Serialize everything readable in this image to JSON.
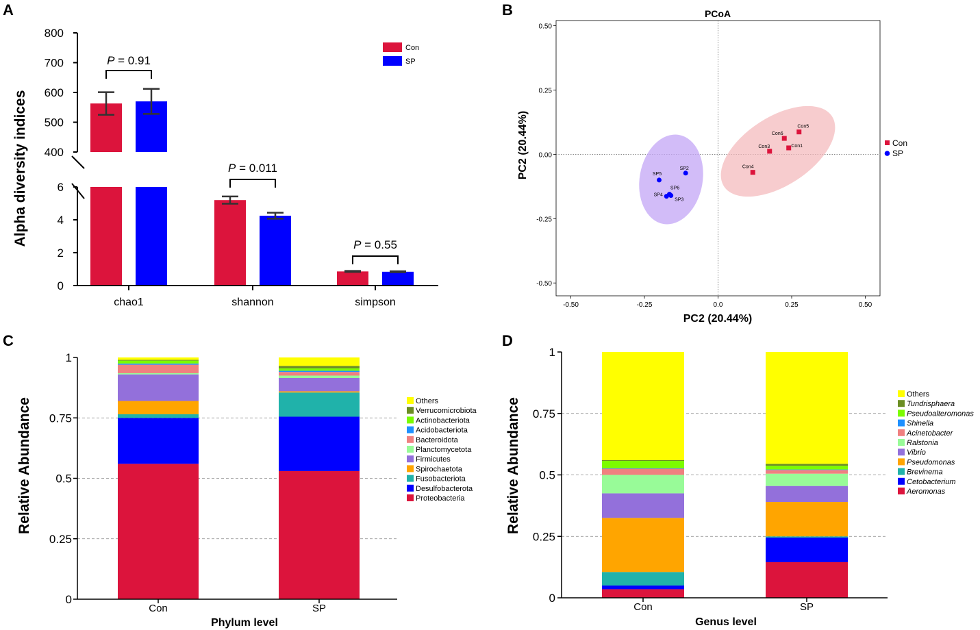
{
  "panels": {
    "A": {
      "label": "A"
    },
    "B": {
      "label": "B"
    },
    "C": {
      "label": "C"
    },
    "D": {
      "label": "D"
    }
  },
  "chart_data": [
    {
      "id": "A",
      "type": "bar",
      "title": "",
      "ylabel": "Alpha diversity indices",
      "xlabel": "",
      "categories": [
        "chao1",
        "shannon",
        "simpson"
      ],
      "series": [
        {
          "name": "Con",
          "color": "#dc143c",
          "values": [
            563,
            5.2,
            0.86
          ],
          "errors": [
            38,
            0.22,
            0.03
          ]
        },
        {
          "name": "SP",
          "color": "#0000ff",
          "values": [
            570,
            4.25,
            0.84
          ],
          "errors": [
            42,
            0.18,
            0.03
          ]
        }
      ],
      "axis_break": {
        "lower_range": [
          0,
          6
        ],
        "upper_range": [
          400,
          800
        ]
      },
      "lower_ticks": [
        "0",
        "2",
        "4",
        "6"
      ],
      "upper_ticks": [
        "400",
        "500",
        "600",
        "700",
        "800"
      ],
      "annotations": [
        "P = 0.91",
        "P = 0.011",
        "P = 0.55"
      ],
      "legend": [
        "Con",
        "SP"
      ]
    },
    {
      "id": "B",
      "type": "scatter",
      "title": "PCoA",
      "xlabel": "PC2 (20.44%)",
      "ylabel": "PC2 (20.44%)",
      "xlim": [
        -0.55,
        0.55
      ],
      "ylim": [
        -0.55,
        0.52
      ],
      "xticks": [
        "-0.50",
        "-0.25",
        "0.0",
        "0.25",
        "0.50"
      ],
      "yticks": [
        "0.50",
        "0.25",
        "0.00",
        "-0.25",
        "-0.50"
      ],
      "series": [
        {
          "name": "Con",
          "color": "#dc143c",
          "marker": "square",
          "points": [
            {
              "label": "Con1",
              "x": 0.24,
              "y": 0.025
            },
            {
              "label": "Con3",
              "x": 0.175,
              "y": 0.012
            },
            {
              "label": "Con4",
              "x": 0.118,
              "y": -0.07
            },
            {
              "label": "Con5",
              "x": 0.275,
              "y": 0.087
            },
            {
              "label": "Con6",
              "x": 0.225,
              "y": 0.062
            }
          ]
        },
        {
          "name": "SP",
          "color": "#0000ff",
          "marker": "circle",
          "points": [
            {
              "label": "SP2",
              "x": -0.11,
              "y": -0.073
            },
            {
              "label": "SP3",
              "x": -0.16,
              "y": -0.16
            },
            {
              "label": "SP4",
              "x": -0.175,
              "y": -0.163
            },
            {
              "label": "SP5",
              "x": -0.2,
              "y": -0.1
            },
            {
              "label": "SP6",
              "x": -0.165,
              "y": -0.155
            }
          ]
        }
      ],
      "legend": [
        "Con",
        "SP"
      ]
    },
    {
      "id": "C",
      "type": "bar",
      "stacked": true,
      "title": "",
      "xlabel": "Phylum level",
      "ylabel": "Relative Abundance",
      "categories": [
        "Con",
        "SP"
      ],
      "yticks": [
        "0",
        "0.25",
        "0.5",
        "0.75",
        "1"
      ],
      "ylim": [
        0,
        1
      ],
      "series": [
        {
          "name": "Proteobacteria",
          "color": "#dc143c",
          "values": [
            0.56,
            0.53
          ]
        },
        {
          "name": "Desulfobacterota",
          "color": "#0000ff",
          "values": [
            0.19,
            0.225
          ]
        },
        {
          "name": "Fusobacteriota",
          "color": "#20b2aa",
          "values": [
            0.015,
            0.1
          ]
        },
        {
          "name": "Spirochaetota",
          "color": "#ffa500",
          "values": [
            0.055,
            0.005
          ]
        },
        {
          "name": "Firmicutes",
          "color": "#9370db",
          "values": [
            0.11,
            0.055
          ]
        },
        {
          "name": "Planctomycetota",
          "color": "#98fb98",
          "values": [
            0.005,
            0.01
          ]
        },
        {
          "name": "Bacteroidota",
          "color": "#f08080",
          "values": [
            0.035,
            0.015
          ]
        },
        {
          "name": "Acidobacteriota",
          "color": "#1e90ff",
          "values": [
            0.005,
            0.005
          ]
        },
        {
          "name": "Actinobacteriota",
          "color": "#7cfc00",
          "values": [
            0.012,
            0.01
          ]
        },
        {
          "name": "Verrucomicrobiota",
          "color": "#6b8e23",
          "values": [
            0.003,
            0.01
          ]
        },
        {
          "name": "Others",
          "color": "#ffff00",
          "values": [
            0.01,
            0.035
          ]
        }
      ]
    },
    {
      "id": "D",
      "type": "bar",
      "stacked": true,
      "title": "",
      "xlabel": "Genus level",
      "ylabel": "Relative Abundance",
      "categories": [
        "Con",
        "SP"
      ],
      "yticks": [
        "0",
        "0.25",
        "0.5",
        "0.75",
        "1"
      ],
      "ylim": [
        0,
        1
      ],
      "series": [
        {
          "name": "Aeromonas",
          "color": "#dc143c",
          "italic": true,
          "values": [
            0.035,
            0.145
          ]
        },
        {
          "name": "Cetobacterium",
          "color": "#0000ff",
          "italic": true,
          "values": [
            0.015,
            0.1
          ]
        },
        {
          "name": "Brevinema",
          "color": "#20b2aa",
          "italic": true,
          "values": [
            0.055,
            0.005
          ]
        },
        {
          "name": "Pseudomonas",
          "color": "#ffa500",
          "italic": true,
          "values": [
            0.22,
            0.14
          ]
        },
        {
          "name": "Vibrio",
          "color": "#9370db",
          "italic": true,
          "values": [
            0.1,
            0.065
          ]
        },
        {
          "name": "Ralstonia",
          "color": "#98fb98",
          "italic": true,
          "values": [
            0.075,
            0.05
          ]
        },
        {
          "name": "Acinetobacter",
          "color": "#f08080",
          "italic": true,
          "values": [
            0.025,
            0.015
          ]
        },
        {
          "name": "Shinella",
          "color": "#1e90ff",
          "italic": true,
          "values": [
            0.002,
            0.002
          ]
        },
        {
          "name": "Pseudoalteromonas",
          "color": "#7cfc00",
          "italic": true,
          "values": [
            0.03,
            0.015
          ]
        },
        {
          "name": "Tundrisphaera",
          "color": "#6b8e23",
          "italic": true,
          "values": [
            0.003,
            0.008
          ]
        },
        {
          "name": "Others",
          "color": "#ffff00",
          "italic": false,
          "values": [
            0.44,
            0.455
          ]
        }
      ]
    }
  ]
}
